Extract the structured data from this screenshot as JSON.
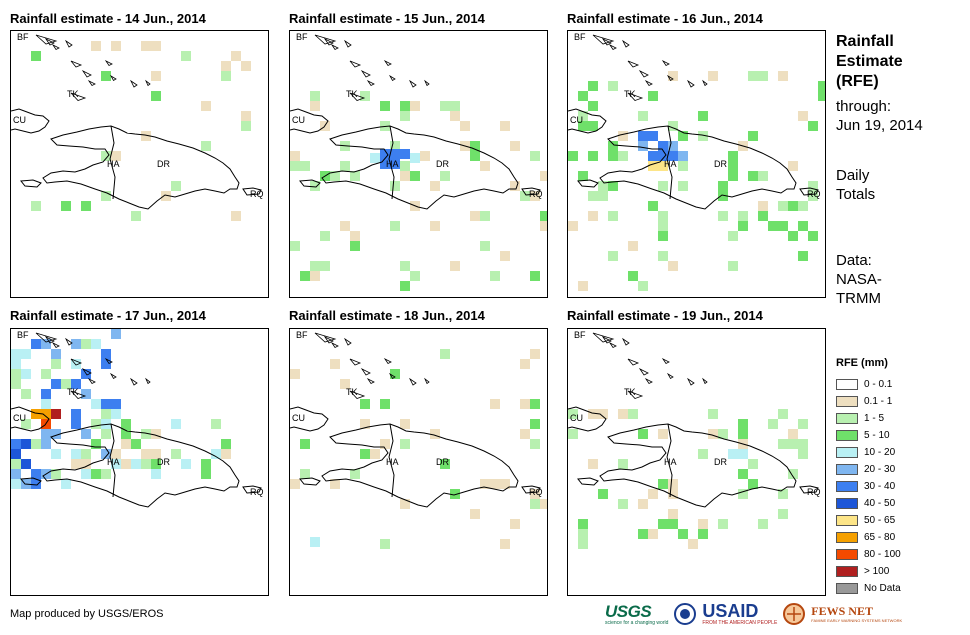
{
  "panels": [
    {
      "title": "Rainfall estimate - 14 Jun., 2014"
    },
    {
      "title": "Rainfall estimate - 15 Jun., 2014"
    },
    {
      "title": "Rainfall estimate - 16 Jun., 2014"
    },
    {
      "title": "Rainfall estimate - 17 Jun., 2014"
    },
    {
      "title": "Rainfall estimate - 18 Jun., 2014"
    },
    {
      "title": "Rainfall estimate - 19 Jun., 2014"
    }
  ],
  "map_labels": {
    "bf": "BF",
    "tk": "TK",
    "cu": "CU",
    "ha": "HA",
    "dr": "DR",
    "rq": "RQ"
  },
  "sidebar": {
    "title_line1": "Rainfall",
    "title_line2": "Estimate",
    "title_line3": "(RFE)",
    "through": "through:",
    "date": "Jun 19, 2014",
    "daily1": "Daily",
    "daily2": "Totals",
    "data1": "Data:",
    "data2": "NASA-",
    "data3": "TRMM"
  },
  "legend": {
    "title": "RFE (mm)",
    "items": [
      {
        "label": "0 - 0.1",
        "color": "#ffffff"
      },
      {
        "label": "0.1 - 1",
        "color": "#eedfc0"
      },
      {
        "label": "1 - 5",
        "color": "#b8f0b0"
      },
      {
        "label": "5 - 10",
        "color": "#6fe06a"
      },
      {
        "label": "10 - 20",
        "color": "#b9f0f4"
      },
      {
        "label": "20 - 30",
        "color": "#7fb6f0"
      },
      {
        "label": "30 - 40",
        "color": "#3d7ff0"
      },
      {
        "label": "40 - 50",
        "color": "#1d56d8"
      },
      {
        "label": "50 - 65",
        "color": "#fde588"
      },
      {
        "label": "65 - 80",
        "color": "#f5a000"
      },
      {
        "label": "80 - 100",
        "color": "#f44a00"
      },
      {
        "label": "> 100",
        "color": "#b01f1f"
      },
      {
        "label": "No Data",
        "color": "#999999"
      }
    ]
  },
  "footer": {
    "credit": "Map produced by USGS/EROS",
    "usgs": "USGS",
    "usgs_tag": "science for a changing world",
    "usaid": "USAID",
    "usaid_tag": "FROM THE AMERICAN PEOPLE",
    "fews": "FEWS NET",
    "fews_tag": "FAMINE EARLY WARNING SYSTEMS NETWORK"
  },
  "colors": {
    "c0": "#eedfc0",
    "c1": "#b8f0b0",
    "c2": "#6fe06a",
    "c3": "#b9f0f4",
    "c4": "#7fb6f0",
    "c5": "#3d7ff0",
    "c6": "#1d56d8",
    "c7": "#fde588",
    "c8": "#f5a000",
    "c9": "#f44a00",
    "c10": "#b01f1f"
  }
}
